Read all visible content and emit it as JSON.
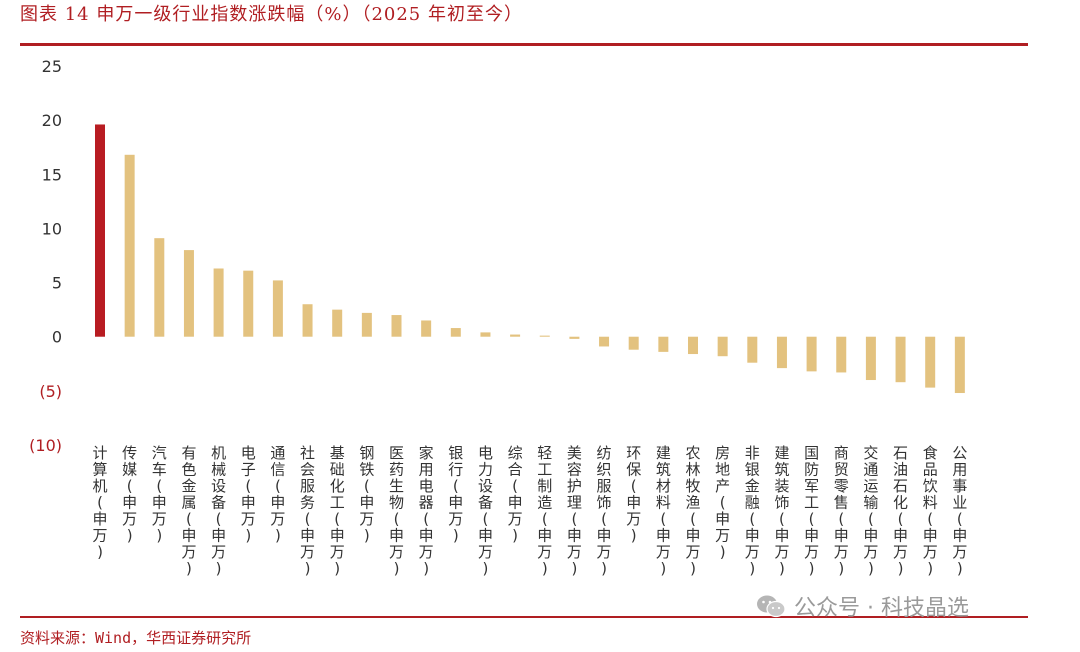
{
  "title": "图表 14  申万一级行业指数涨跌幅（%）（2025 年初至今）",
  "source": "资料来源：Wind，华西证券研究所",
  "watermark": "公众号 · 科技晶选",
  "colors": {
    "accent": "#b01e22",
    "bar": "#e3c27f",
    "highlight": "#b81c22"
  },
  "chart_data": {
    "type": "bar",
    "title": "图表 14  申万一级行业指数涨跌幅（%）（2025 年初至今）",
    "ylim": [
      -10,
      25
    ],
    "yticks": [
      25,
      20,
      15,
      10,
      5,
      0,
      -5,
      -10
    ],
    "ytick_labels": [
      "25",
      "20",
      "15",
      "10",
      "5",
      "0",
      "(5)",
      "(10)"
    ],
    "grid": false,
    "categories": [
      "计算机(申万)",
      "传媒(申万)",
      "汽车(申万)",
      "有色金属(申万)",
      "机械设备(申万)",
      "电子(申万)",
      "通信(申万)",
      "社会服务(申万)",
      "基础化工(申万)",
      "钢铁(申万)",
      "医药生物(申万)",
      "家用电器(申万)",
      "银行(申万)",
      "电力设备(申万)",
      "综合(申万)",
      "轻工制造(申万)",
      "美容护理(申万)",
      "纺织服饰(申万)",
      "环保(申万)",
      "建筑材料(申万)",
      "农林牧渔(申万)",
      "房地产(申万)",
      "非银金融(申万)",
      "建筑装饰(申万)",
      "国防军工(申万)",
      "商贸零售(申万)",
      "交通运输(申万)",
      "石油石化(申万)",
      "食品饮料(申万)",
      "公用事业(申万)"
    ],
    "values": [
      19.6,
      16.8,
      9.1,
      8.0,
      6.3,
      6.1,
      5.2,
      3.0,
      2.5,
      2.2,
      2.0,
      1.5,
      0.8,
      0.4,
      0.2,
      0.1,
      -0.2,
      -0.9,
      -1.2,
      -1.4,
      -1.6,
      -1.8,
      -2.4,
      -2.9,
      -3.2,
      -3.3,
      -4.0,
      -4.2,
      -4.7,
      -5.2
    ],
    "highlight_index": 0
  }
}
